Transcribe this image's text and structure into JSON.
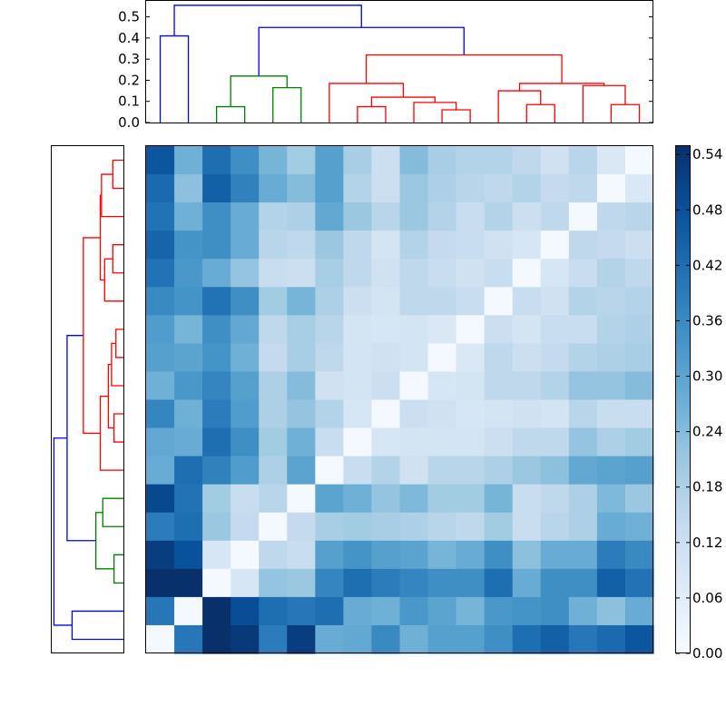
{
  "chart_data": [
    {
      "type": "dendrogram",
      "name": "column-dendrogram",
      "orientation": "top",
      "ylabel": "",
      "yticks": [
        "0.0",
        "0.1",
        "0.2",
        "0.3",
        "0.4",
        "0.5"
      ],
      "ytick_values": [
        0.0,
        0.1,
        0.2,
        0.3,
        0.4,
        0.5
      ],
      "ylim": [
        0.0,
        0.58
      ],
      "colors": {
        "blue": "#0000ff",
        "green": "#008000",
        "red": "#ff0000"
      },
      "links": [
        {
          "xs": [
            1,
            1,
            2,
            2
          ],
          "ys": [
            0,
            0.41,
            0.41,
            0
          ],
          "color": "blue"
        },
        {
          "xs": [
            3,
            3,
            4,
            4
          ],
          "ys": [
            0,
            0.075,
            0.075,
            0
          ],
          "color": "green"
        },
        {
          "xs": [
            5,
            5,
            6,
            6
          ],
          "ys": [
            0,
            0.165,
            0.165,
            0
          ],
          "color": "green"
        },
        {
          "xs": [
            3.5,
            3.5,
            5.5,
            5.5
          ],
          "ys": [
            0.075,
            0.22,
            0.22,
            0.165
          ],
          "color": "green"
        },
        {
          "xs": [
            8,
            8,
            9,
            9
          ],
          "ys": [
            0,
            0.075,
            0.075,
            0
          ],
          "color": "red"
        },
        {
          "xs": [
            11,
            11,
            12,
            12
          ],
          "ys": [
            0,
            0.06,
            0.06,
            0
          ],
          "color": "red"
        },
        {
          "xs": [
            10,
            10,
            11.5,
            11.5
          ],
          "ys": [
            0,
            0.095,
            0.095,
            0.06
          ],
          "color": "red"
        },
        {
          "xs": [
            8.5,
            8.5,
            10.75,
            10.75
          ],
          "ys": [
            0.075,
            0.12,
            0.12,
            0.095
          ],
          "color": "red"
        },
        {
          "xs": [
            7,
            7,
            9.625,
            9.625
          ],
          "ys": [
            0,
            0.185,
            0.185,
            0.12
          ],
          "color": "red"
        },
        {
          "xs": [
            14,
            14,
            15,
            15
          ],
          "ys": [
            0,
            0.085,
            0.085,
            0
          ],
          "color": "red"
        },
        {
          "xs": [
            13,
            13,
            14.5,
            14.5
          ],
          "ys": [
            0,
            0.15,
            0.15,
            0.085
          ],
          "color": "red"
        },
        {
          "xs": [
            17,
            17,
            18,
            18
          ],
          "ys": [
            0,
            0.085,
            0.085,
            0
          ],
          "color": "red"
        },
        {
          "xs": [
            16,
            16,
            17.5,
            17.5
          ],
          "ys": [
            0,
            0.175,
            0.175,
            0.085
          ],
          "color": "red"
        },
        {
          "xs": [
            13.75,
            13.75,
            16.75,
            16.75
          ],
          "ys": [
            0.15,
            0.185,
            0.185,
            0.175
          ],
          "color": "red"
        },
        {
          "xs": [
            8.3125,
            8.3125,
            15.25,
            15.25
          ],
          "ys": [
            0.185,
            0.32,
            0.32,
            0.185
          ],
          "color": "red"
        },
        {
          "xs": [
            4.5,
            4.5,
            11.78,
            11.78
          ],
          "ys": [
            0.22,
            0.45,
            0.45,
            0.32
          ],
          "color": "blue"
        },
        {
          "xs": [
            1.5,
            1.5,
            8.14,
            8.14
          ],
          "ys": [
            0.41,
            0.555,
            0.555,
            0.45
          ],
          "color": "blue"
        }
      ]
    },
    {
      "type": "dendrogram",
      "name": "row-dendrogram",
      "orientation": "left",
      "xlim": [
        0.58,
        0.0
      ],
      "colors": {
        "blue": "#0000ff",
        "green": "#008000",
        "red": "#ff0000"
      },
      "links": [
        {
          "ys": [
            1,
            1,
            2,
            2
          ],
          "xs": [
            0,
            0.085,
            0.085,
            0
          ],
          "color": "red"
        },
        {
          "ys": [
            1.5,
            1.5,
            3,
            3
          ],
          "xs": [
            0.085,
            0.175,
            0.175,
            0
          ],
          "color": "red"
        },
        {
          "ys": [
            4,
            4,
            5,
            5
          ],
          "xs": [
            0,
            0.085,
            0.085,
            0
          ],
          "color": "red"
        },
        {
          "ys": [
            4.5,
            4.5,
            6,
            6
          ],
          "xs": [
            0.085,
            0.15,
            0.15,
            0
          ],
          "color": "red"
        },
        {
          "ys": [
            2.25,
            2.25,
            5.25,
            5.25
          ],
          "xs": [
            0.175,
            0.185,
            0.185,
            0.15
          ],
          "color": "red"
        },
        {
          "ys": [
            7,
            7,
            8,
            8
          ],
          "xs": [
            0,
            0.06,
            0.06,
            0
          ],
          "color": "red"
        },
        {
          "ys": [
            7.5,
            7.5,
            9,
            9
          ],
          "xs": [
            0.06,
            0.095,
            0.095,
            0
          ],
          "color": "red"
        },
        {
          "ys": [
            10,
            10,
            11,
            11
          ],
          "xs": [
            0,
            0.075,
            0.075,
            0
          ],
          "color": "red"
        },
        {
          "ys": [
            8.25,
            8.25,
            10.5,
            10.5
          ],
          "xs": [
            0.095,
            0.12,
            0.12,
            0.075
          ],
          "color": "red"
        },
        {
          "ys": [
            9.375,
            9.375,
            12,
            12
          ],
          "xs": [
            0.12,
            0.185,
            0.185,
            0
          ],
          "color": "red"
        },
        {
          "ys": [
            3.75,
            3.75,
            10.69,
            10.69
          ],
          "xs": [
            0.185,
            0.32,
            0.32,
            0.185
          ],
          "color": "red"
        },
        {
          "ys": [
            13,
            13,
            14,
            14
          ],
          "xs": [
            0,
            0.165,
            0.165,
            0
          ],
          "color": "green"
        },
        {
          "ys": [
            15,
            15,
            16,
            16
          ],
          "xs": [
            0,
            0.075,
            0.075,
            0
          ],
          "color": "green"
        },
        {
          "ys": [
            13.5,
            13.5,
            15.5,
            15.5
          ],
          "xs": [
            0.165,
            0.22,
            0.22,
            0.075
          ],
          "color": "green"
        },
        {
          "ys": [
            7.22,
            7.22,
            14.5,
            14.5
          ],
          "xs": [
            0.32,
            0.45,
            0.45,
            0.22
          ],
          "color": "blue"
        },
        {
          "ys": [
            17,
            17,
            18,
            18
          ],
          "xs": [
            0,
            0.41,
            0.41,
            0
          ],
          "color": "blue"
        },
        {
          "ys": [
            10.86,
            10.86,
            17.5,
            17.5
          ],
          "xs": [
            0.45,
            0.555,
            0.555,
            0.41
          ],
          "color": "blue"
        }
      ]
    },
    {
      "type": "heatmap",
      "name": "distance-matrix",
      "colormap": "Blues",
      "vmin": 0.0,
      "vmax": 0.55,
      "rows": 18,
      "cols": 18,
      "values": [
        [
          0.47,
          0.27,
          0.42,
          0.35,
          0.26,
          0.2,
          0.31,
          0.19,
          0.12,
          0.24,
          0.19,
          0.17,
          0.17,
          0.15,
          0.11,
          0.16,
          0.08,
          0.01
        ],
        [
          0.43,
          0.23,
          0.45,
          0.38,
          0.28,
          0.24,
          0.31,
          0.17,
          0.12,
          0.21,
          0.18,
          0.16,
          0.15,
          0.17,
          0.14,
          0.15,
          0.01,
          0.08
        ],
        [
          0.41,
          0.27,
          0.35,
          0.28,
          0.17,
          0.18,
          0.29,
          0.21,
          0.16,
          0.21,
          0.17,
          0.13,
          0.17,
          0.12,
          0.15,
          0.01,
          0.15,
          0.16
        ],
        [
          0.44,
          0.34,
          0.35,
          0.28,
          0.16,
          0.15,
          0.21,
          0.15,
          0.1,
          0.17,
          0.14,
          0.13,
          0.11,
          0.09,
          0.01,
          0.15,
          0.14,
          0.12
        ],
        [
          0.41,
          0.33,
          0.28,
          0.22,
          0.13,
          0.12,
          0.19,
          0.15,
          0.11,
          0.15,
          0.13,
          0.11,
          0.13,
          0.01,
          0.09,
          0.13,
          0.17,
          0.15
        ],
        [
          0.36,
          0.34,
          0.41,
          0.35,
          0.2,
          0.26,
          0.18,
          0.12,
          0.1,
          0.15,
          0.15,
          0.13,
          0.01,
          0.13,
          0.11,
          0.17,
          0.16,
          0.17
        ],
        [
          0.32,
          0.26,
          0.35,
          0.29,
          0.15,
          0.19,
          0.16,
          0.1,
          0.09,
          0.1,
          0.08,
          0.01,
          0.12,
          0.1,
          0.13,
          0.13,
          0.17,
          0.18
        ],
        [
          0.31,
          0.3,
          0.34,
          0.27,
          0.14,
          0.19,
          0.15,
          0.1,
          0.11,
          0.1,
          0.01,
          0.08,
          0.15,
          0.12,
          0.14,
          0.17,
          0.18,
          0.19
        ],
        [
          0.27,
          0.33,
          0.37,
          0.31,
          0.18,
          0.24,
          0.11,
          0.1,
          0.12,
          0.01,
          0.09,
          0.1,
          0.15,
          0.15,
          0.17,
          0.22,
          0.22,
          0.24
        ],
        [
          0.37,
          0.27,
          0.39,
          0.32,
          0.18,
          0.22,
          0.17,
          0.09,
          0.01,
          0.12,
          0.11,
          0.09,
          0.1,
          0.11,
          0.1,
          0.16,
          0.13,
          0.13
        ],
        [
          0.29,
          0.28,
          0.42,
          0.35,
          0.2,
          0.27,
          0.13,
          0.01,
          0.09,
          0.1,
          0.1,
          0.1,
          0.12,
          0.15,
          0.15,
          0.22,
          0.18,
          0.2
        ],
        [
          0.28,
          0.42,
          0.38,
          0.32,
          0.18,
          0.3,
          0.01,
          0.13,
          0.17,
          0.11,
          0.16,
          0.16,
          0.18,
          0.21,
          0.23,
          0.29,
          0.3,
          0.31
        ],
        [
          0.5,
          0.41,
          0.2,
          0.13,
          0.16,
          0.01,
          0.3,
          0.27,
          0.22,
          0.25,
          0.2,
          0.2,
          0.26,
          0.13,
          0.15,
          0.18,
          0.25,
          0.21
        ],
        [
          0.39,
          0.42,
          0.21,
          0.14,
          0.01,
          0.14,
          0.19,
          0.2,
          0.19,
          0.18,
          0.16,
          0.15,
          0.2,
          0.13,
          0.16,
          0.18,
          0.28,
          0.27
        ],
        [
          0.52,
          0.48,
          0.09,
          0.01,
          0.15,
          0.13,
          0.31,
          0.34,
          0.31,
          0.3,
          0.26,
          0.28,
          0.35,
          0.23,
          0.28,
          0.28,
          0.39,
          0.36
        ],
        [
          0.55,
          0.55,
          0.01,
          0.09,
          0.22,
          0.21,
          0.37,
          0.42,
          0.39,
          0.37,
          0.35,
          0.35,
          0.42,
          0.28,
          0.35,
          0.35,
          0.45,
          0.41
        ],
        [
          0.4,
          0.01,
          0.55,
          0.49,
          0.42,
          0.4,
          0.42,
          0.28,
          0.27,
          0.33,
          0.3,
          0.26,
          0.33,
          0.34,
          0.35,
          0.27,
          0.23,
          0.28
        ],
        [
          0.01,
          0.4,
          0.55,
          0.53,
          0.39,
          0.52,
          0.28,
          0.29,
          0.36,
          0.27,
          0.31,
          0.31,
          0.35,
          0.42,
          0.45,
          0.4,
          0.43,
          0.47
        ]
      ]
    },
    {
      "type": "colorbar",
      "name": "colorbar",
      "colormap": "Blues",
      "vmin": 0.0,
      "vmax": 0.55,
      "ticks": [
        "0.00",
        "0.06",
        "0.12",
        "0.18",
        "0.24",
        "0.30",
        "0.36",
        "0.42",
        "0.48",
        "0.54"
      ],
      "tick_values": [
        0.0,
        0.06,
        0.12,
        0.18,
        0.24,
        0.3,
        0.36,
        0.42,
        0.48,
        0.54
      ]
    }
  ]
}
